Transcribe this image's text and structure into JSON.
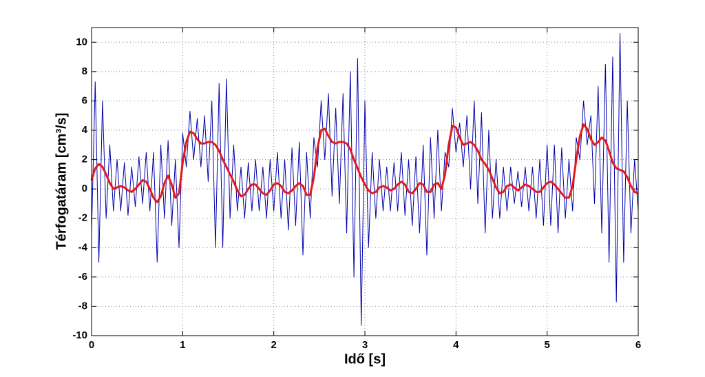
{
  "chart_data": {
    "type": "line",
    "xlabel": "Idő [s]",
    "ylabel": "Térfogatáram [cm³/s]",
    "xlim": [
      0,
      6
    ],
    "ylim": [
      -10,
      11
    ],
    "xticks": [
      0,
      1,
      2,
      3,
      4,
      5,
      6
    ],
    "yticks": [
      -10,
      -8,
      -6,
      -4,
      -2,
      0,
      2,
      4,
      6,
      8,
      10
    ],
    "grid": true,
    "x": [
      0,
      0.04,
      0.08,
      0.12,
      0.16,
      0.2,
      0.24,
      0.28,
      0.32,
      0.36,
      0.4,
      0.44,
      0.48,
      0.52,
      0.56,
      0.6,
      0.64,
      0.68,
      0.72,
      0.76,
      0.8,
      0.84,
      0.88,
      0.92,
      0.96,
      1,
      1.04,
      1.08,
      1.12,
      1.16,
      1.2,
      1.24,
      1.28,
      1.32,
      1.36,
      1.4,
      1.44,
      1.48,
      1.52,
      1.56,
      1.6,
      1.64,
      1.68,
      1.72,
      1.76,
      1.8,
      1.84,
      1.88,
      1.92,
      1.96,
      2,
      2.04,
      2.08,
      2.12,
      2.16,
      2.2,
      2.24,
      2.28,
      2.32,
      2.36,
      2.4,
      2.44,
      2.48,
      2.52,
      2.56,
      2.6,
      2.64,
      2.68,
      2.72,
      2.76,
      2.8,
      2.84,
      2.88,
      2.92,
      2.96,
      3,
      3.04,
      3.08,
      3.12,
      3.16,
      3.2,
      3.24,
      3.28,
      3.32,
      3.36,
      3.4,
      3.44,
      3.48,
      3.52,
      3.56,
      3.6,
      3.64,
      3.68,
      3.72,
      3.76,
      3.8,
      3.84,
      3.88,
      3.92,
      3.96,
      4,
      4.04,
      4.08,
      4.12,
      4.16,
      4.2,
      4.24,
      4.28,
      4.32,
      4.36,
      4.4,
      4.44,
      4.48,
      4.52,
      4.56,
      4.6,
      4.64,
      4.68,
      4.72,
      4.76,
      4.8,
      4.84,
      4.88,
      4.92,
      4.96,
      5,
      5.04,
      5.08,
      5.12,
      5.16,
      5.2,
      5.24,
      5.28,
      5.32,
      5.36,
      5.4,
      5.44,
      5.48,
      5.52,
      5.56,
      5.6,
      5.64,
      5.68,
      5.72,
      5.76,
      5.8,
      5.84,
      5.88,
      5.92,
      5.96,
      6
    ],
    "series": [
      {
        "color": "#0000aa",
        "width": 1,
        "values": [
          -3,
          7.3,
          -5,
          6,
          -2,
          3,
          -1.5,
          2,
          -1.5,
          1.8,
          -1.8,
          1.5,
          -1.2,
          2.2,
          -1,
          2.5,
          -1.5,
          2.5,
          -5,
          3,
          -2,
          3.3,
          -2.5,
          2,
          -4,
          3.8,
          1.5,
          5.3,
          2,
          4.8,
          1.5,
          5,
          0.5,
          6,
          -4,
          7.2,
          -4,
          7.5,
          -2,
          3,
          -1.5,
          1.5,
          -2,
          1.8,
          -1.5,
          2,
          -1.5,
          1.5,
          -2,
          2,
          -1.5,
          2.5,
          -2,
          2,
          -2.8,
          2.8,
          -2.5,
          3.2,
          -4.5,
          2.5,
          -2,
          3.5,
          1.5,
          6,
          2,
          6.5,
          -0.5,
          5.5,
          -1,
          6.5,
          -3,
          8,
          -6,
          8.9,
          -9.3,
          6,
          -4,
          2.5,
          -2,
          2,
          -1.5,
          1.5,
          -1.5,
          1.8,
          -1.5,
          2.5,
          -1.8,
          2,
          -2.5,
          2.2,
          -3,
          3,
          -4.5,
          3.5,
          -2,
          4,
          -1.5,
          2.5,
          1.5,
          5.5,
          2.5,
          4.5,
          1.5,
          5,
          0,
          6,
          -1,
          5.2,
          -3,
          4,
          -2,
          2,
          -2,
          1.5,
          -1.5,
          1.5,
          -1,
          1.2,
          -1.2,
          1.5,
          -1.5,
          1.5,
          -2,
          2,
          -2.5,
          3,
          -2.5,
          3,
          -3,
          2.8,
          -2,
          2,
          -1.5,
          3.5,
          2,
          6,
          3,
          5,
          -1,
          7,
          -3,
          8.5,
          -5,
          9,
          -7.7,
          10.6,
          -5,
          6,
          -3,
          2,
          -1.5
        ]
      },
      {
        "color": "#e31a1c",
        "width": 3,
        "values": [
          0.6,
          1.4,
          1.7,
          1.5,
          1.0,
          0.4,
          0.0,
          0.1,
          0.2,
          0.1,
          -0.1,
          -0.2,
          0.0,
          0.3,
          0.6,
          0.5,
          0.0,
          -0.6,
          -0.9,
          -0.5,
          0.4,
          0.9,
          0.3,
          -0.6,
          -0.3,
          1.8,
          3.2,
          3.9,
          3.8,
          3.4,
          3.1,
          3.1,
          3.2,
          3.2,
          3.0,
          2.6,
          2.0,
          1.5,
          1.0,
          0.5,
          -0.1,
          -0.5,
          -0.4,
          0.0,
          0.3,
          0.3,
          0.0,
          -0.3,
          -0.4,
          -0.1,
          0.3,
          0.4,
          0.2,
          -0.2,
          -0.3,
          -0.1,
          0.2,
          0.4,
          0.2,
          -0.4,
          -0.4,
          0.8,
          2.8,
          4.0,
          4.1,
          3.6,
          3.2,
          3.1,
          3.2,
          3.2,
          3.1,
          2.7,
          2.0,
          1.4,
          0.8,
          0.3,
          -0.1,
          -0.3,
          -0.2,
          0.1,
          0.2,
          0.1,
          -0.1,
          0.0,
          0.3,
          0.5,
          0.3,
          -0.2,
          -0.3,
          0.0,
          0.4,
          0.3,
          -0.2,
          -0.2,
          0.3,
          0.4,
          0.0,
          1.0,
          3.0,
          4.3,
          4.2,
          3.5,
          3.0,
          3.1,
          3.2,
          3.0,
          2.6,
          2.0,
          1.7,
          1.3,
          0.7,
          0.1,
          -0.3,
          -0.2,
          0.2,
          0.3,
          0.1,
          -0.1,
          0.1,
          0.3,
          0.2,
          0.0,
          -0.2,
          -0.2,
          0.1,
          0.4,
          0.5,
          0.3,
          0.0,
          -0.3,
          -0.6,
          -0.6,
          0.2,
          2.0,
          3.6,
          4.4,
          4.1,
          3.4,
          3.0,
          3.2,
          3.5,
          3.3,
          2.6,
          1.8,
          1.4,
          1.3,
          1.2,
          0.8,
          0.2,
          -0.2,
          -0.3
        ]
      }
    ]
  }
}
